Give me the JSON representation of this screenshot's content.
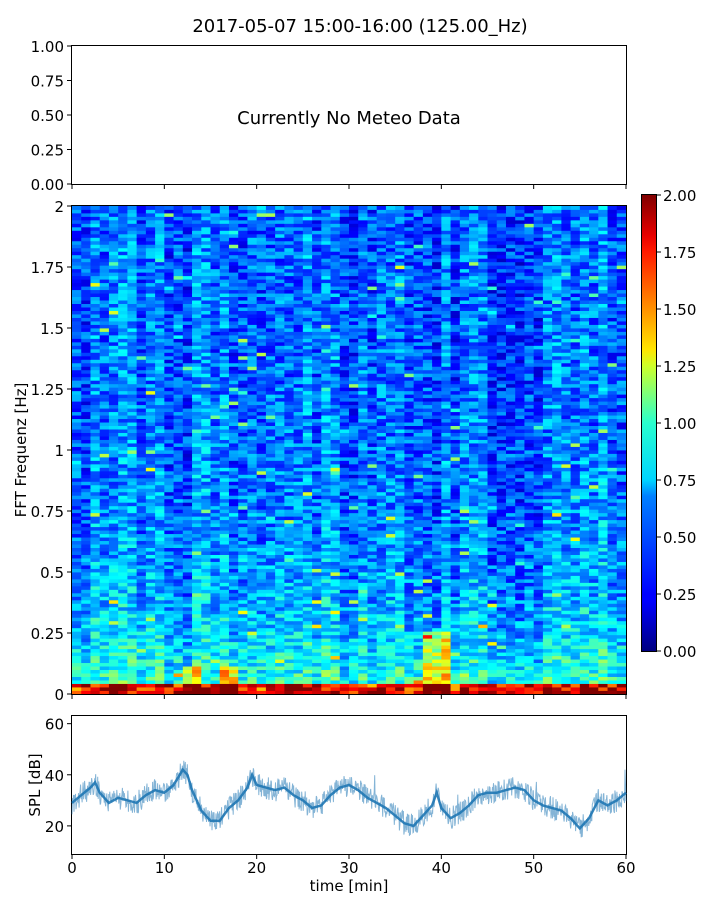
{
  "figure": {
    "title": "2017-05-07 15:00-16:00 (125.00_Hz)"
  },
  "chart_data": [
    {
      "type": "line",
      "name": "meteo-panel",
      "annotation": "Currently No Meteo Data",
      "series": [],
      "ylim": [
        0.0,
        1.0
      ],
      "yticks": [
        "0.00",
        "0.25",
        "0.50",
        "0.75",
        "1.00"
      ],
      "xlim": [
        0,
        60
      ],
      "xlabel": "",
      "ylabel": ""
    },
    {
      "type": "heatmap",
      "name": "spectrogram",
      "ylabel": "FFT Frequenz [Hz]",
      "ylim": [
        0,
        2
      ],
      "yticks": [
        "0",
        "0.25",
        "0.5",
        "0.75",
        "1",
        "1.25",
        "1.5",
        "1.75",
        "2"
      ],
      "xlim": [
        0,
        60
      ],
      "colormap": "jet",
      "colorbar": {
        "range": [
          0.0,
          2.0
        ],
        "ticks": [
          "0.00",
          "0.25",
          "0.50",
          "0.75",
          "1.00",
          "1.25",
          "1.50",
          "1.75",
          "2.00"
        ]
      },
      "hot_regions": [
        {
          "x": [
            38,
            41
          ],
          "y": [
            0.0,
            0.25
          ]
        },
        {
          "x": [
            12,
            14
          ],
          "y": [
            0.0,
            0.1
          ]
        },
        {
          "x": [
            16,
            18
          ],
          "y": [
            0.0,
            0.1
          ]
        }
      ]
    },
    {
      "type": "line",
      "name": "spl",
      "ylabel": "SPL [dB]",
      "xlabel": "time [min]",
      "xlim": [
        0,
        60
      ],
      "xticks": [
        "0",
        "10",
        "20",
        "30",
        "40",
        "50",
        "60"
      ],
      "ylim": [
        9,
        63
      ],
      "yticks": [
        "20",
        "40",
        "60"
      ],
      "color": "#1f77b4",
      "x": [
        0,
        1,
        2,
        2.5,
        3,
        4,
        5,
        6,
        7,
        8,
        9,
        10,
        11,
        11.5,
        12,
        12.5,
        13,
        14,
        15,
        16,
        17,
        18,
        19,
        19.5,
        20,
        21,
        22,
        23,
        24,
        25,
        26,
        27,
        28,
        29,
        30,
        31,
        32,
        33,
        34,
        35,
        36,
        37,
        38,
        39,
        39.5,
        40,
        41,
        42,
        43,
        44,
        45,
        46,
        47,
        48,
        49,
        50,
        51,
        52,
        53,
        54,
        55,
        56,
        57,
        58,
        59,
        60
      ],
      "values": [
        29,
        32,
        35,
        37,
        33,
        29,
        31,
        30,
        29,
        32,
        34,
        33,
        36,
        39,
        42,
        40,
        34,
        26,
        22,
        22,
        27,
        30,
        35,
        40,
        36,
        35,
        34,
        35,
        32,
        30,
        27,
        28,
        32,
        35,
        36,
        34,
        31,
        29,
        27,
        24,
        21,
        20,
        24,
        28,
        33,
        27,
        23,
        25,
        28,
        32,
        33,
        33,
        34,
        35,
        34,
        30,
        28,
        27,
        26,
        23,
        19,
        23,
        30,
        28,
        30,
        33
      ]
    }
  ]
}
